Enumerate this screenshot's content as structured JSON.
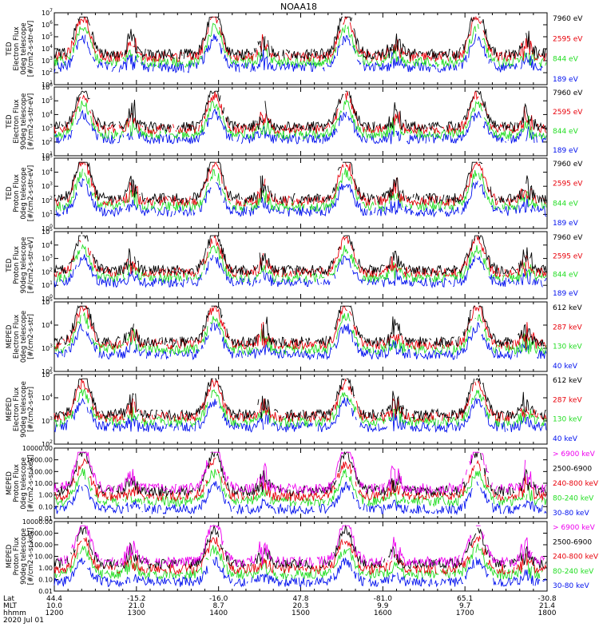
{
  "chart_data": {
    "type": "line",
    "title": "NOAA18",
    "x_axis": {
      "row_labels": [
        "Lat",
        "MLT",
        "hhmm",
        "2020 Jul 01"
      ],
      "hhmm": [
        "1200",
        "1300",
        "1400",
        "1500",
        "1600",
        "1700",
        "1800"
      ],
      "lat": [
        "44.4",
        "-15.2",
        "-16.0",
        "47.8",
        "-81.0",
        "65.1",
        "-30.8"
      ],
      "mlt": [
        "10.0",
        "21.0",
        "8.7",
        "20.3",
        "9.9",
        "9.7",
        "21.4"
      ],
      "range_hours": [
        12,
        18
      ]
    },
    "panels": [
      {
        "ylabel": [
          "TED",
          "Electron Flux",
          "0deg telescope",
          "[#/cm2-s-str-eV]"
        ],
        "scale": "log",
        "ylim_exp": [
          1,
          7
        ],
        "ticks": [
          "10^1",
          "10^2",
          "10^3",
          "10^4",
          "10^5",
          "10^6",
          "10^7"
        ],
        "legend": [
          {
            "label": "7960 eV",
            "color": "#000000"
          },
          {
            "label": "2595 eV",
            "color": "#e8000a"
          },
          {
            "label": "844 eV",
            "color": "#22dd22"
          },
          {
            "label": "189 eV",
            "color": "#0010ee"
          }
        ]
      },
      {
        "ylabel": [
          "TED",
          "Electron Flux",
          "90deg telescope",
          "[#/cm2-s-str-eV]"
        ],
        "scale": "log",
        "ylim_exp": [
          1,
          6
        ],
        "ticks": [
          "10^1",
          "10^2",
          "10^3",
          "10^4",
          "10^5",
          "10^6"
        ],
        "legend": [
          {
            "label": "7960 eV",
            "color": "#000000"
          },
          {
            "label": "2595 eV",
            "color": "#e8000a"
          },
          {
            "label": "844 eV",
            "color": "#22dd22"
          },
          {
            "label": "189 eV",
            "color": "#0010ee"
          }
        ]
      },
      {
        "ylabel": [
          "TED",
          "Proton Flux",
          "0deg telescope",
          "[#/cm2-s-str-eV]"
        ],
        "scale": "log",
        "ylim_exp": [
          0,
          5
        ],
        "ticks": [
          "10^0",
          "10^1",
          "10^2",
          "10^3",
          "10^4",
          "10^5"
        ],
        "legend": [
          {
            "label": "7960 eV",
            "color": "#000000"
          },
          {
            "label": "2595 eV",
            "color": "#e8000a"
          },
          {
            "label": "844 eV",
            "color": "#22dd22"
          },
          {
            "label": "189 eV",
            "color": "#0010ee"
          }
        ]
      },
      {
        "ylabel": [
          "TED",
          "Proton Flux",
          "90deg telescope",
          "[#/cm2-s-str-eV]"
        ],
        "scale": "log",
        "ylim_exp": [
          0,
          5
        ],
        "ticks": [
          "10^0",
          "10^1",
          "10^2",
          "10^3",
          "10^4",
          "10^5"
        ],
        "legend": [
          {
            "label": "7960 eV",
            "color": "#000000"
          },
          {
            "label": "2595 eV",
            "color": "#e8000a"
          },
          {
            "label": "844 eV",
            "color": "#22dd22"
          },
          {
            "label": "189 eV",
            "color": "#0010ee"
          }
        ]
      },
      {
        "ylabel": [
          "MEPED",
          "Electron Flux",
          "0deg telescope",
          "[#/cm2-s-str]"
        ],
        "scale": "log",
        "ylim_exp": [
          2,
          5
        ],
        "ticks": [
          "10^2",
          "10^3",
          "10^4",
          "10^5"
        ],
        "legend": [
          {
            "label": "612 keV",
            "color": "#000000"
          },
          {
            "label": "287 keV",
            "color": "#e8000a"
          },
          {
            "label": "130 keV",
            "color": "#22dd22"
          },
          {
            "label": "40 keV",
            "color": "#0010ee"
          }
        ]
      },
      {
        "ylabel": [
          "MEPED",
          "Electron Flux",
          "90deg telescope",
          "[#/cm2-s-str]"
        ],
        "scale": "log",
        "ylim_exp": [
          2,
          5
        ],
        "ticks": [
          "10^2",
          "10^3",
          "10^4",
          "10^5"
        ],
        "legend": [
          {
            "label": "612 keV",
            "color": "#000000"
          },
          {
            "label": "287 keV",
            "color": "#e8000a"
          },
          {
            "label": "130 keV",
            "color": "#22dd22"
          },
          {
            "label": "40 keV",
            "color": "#0010ee"
          }
        ]
      },
      {
        "ylabel": [
          "MEPED",
          "Proton Flux",
          "0deg telescope",
          "[#/cm2-s-sr-keV]"
        ],
        "scale": "log",
        "ylim_exp": [
          -2,
          4
        ],
        "ticks": [
          "0.01",
          "0.10",
          "1.00",
          "10.00",
          "100.00",
          "1000.00",
          "10000.00"
        ],
        "legend": [
          {
            "label": "> 6900 keV",
            "color": "#ee00ee"
          },
          {
            "label": "2500-6900",
            "color": "#000000"
          },
          {
            "label": "240-800 keV",
            "color": "#e8000a"
          },
          {
            "label": "80-240 keV",
            "color": "#22dd22"
          },
          {
            "label": "30-80 keV",
            "color": "#0010ee"
          }
        ]
      },
      {
        "ylabel": [
          "MEPED",
          "Proton Flux",
          "90deg telescope",
          "[#/cm2-s-sr-keV]"
        ],
        "scale": "log",
        "ylim_exp": [
          -2,
          4
        ],
        "ticks": [
          "0.01",
          "0.10",
          "1.00",
          "10.00",
          "100.00",
          "1000.00",
          "10000.00"
        ],
        "legend": [
          {
            "label": "> 6900 keV",
            "color": "#ee00ee"
          },
          {
            "label": "2500-6900",
            "color": "#000000"
          },
          {
            "label": "240-800 keV",
            "color": "#e8000a"
          },
          {
            "label": "80-240 keV",
            "color": "#22dd22"
          },
          {
            "label": "30-80 keV",
            "color": "#0010ee"
          }
        ]
      }
    ]
  }
}
